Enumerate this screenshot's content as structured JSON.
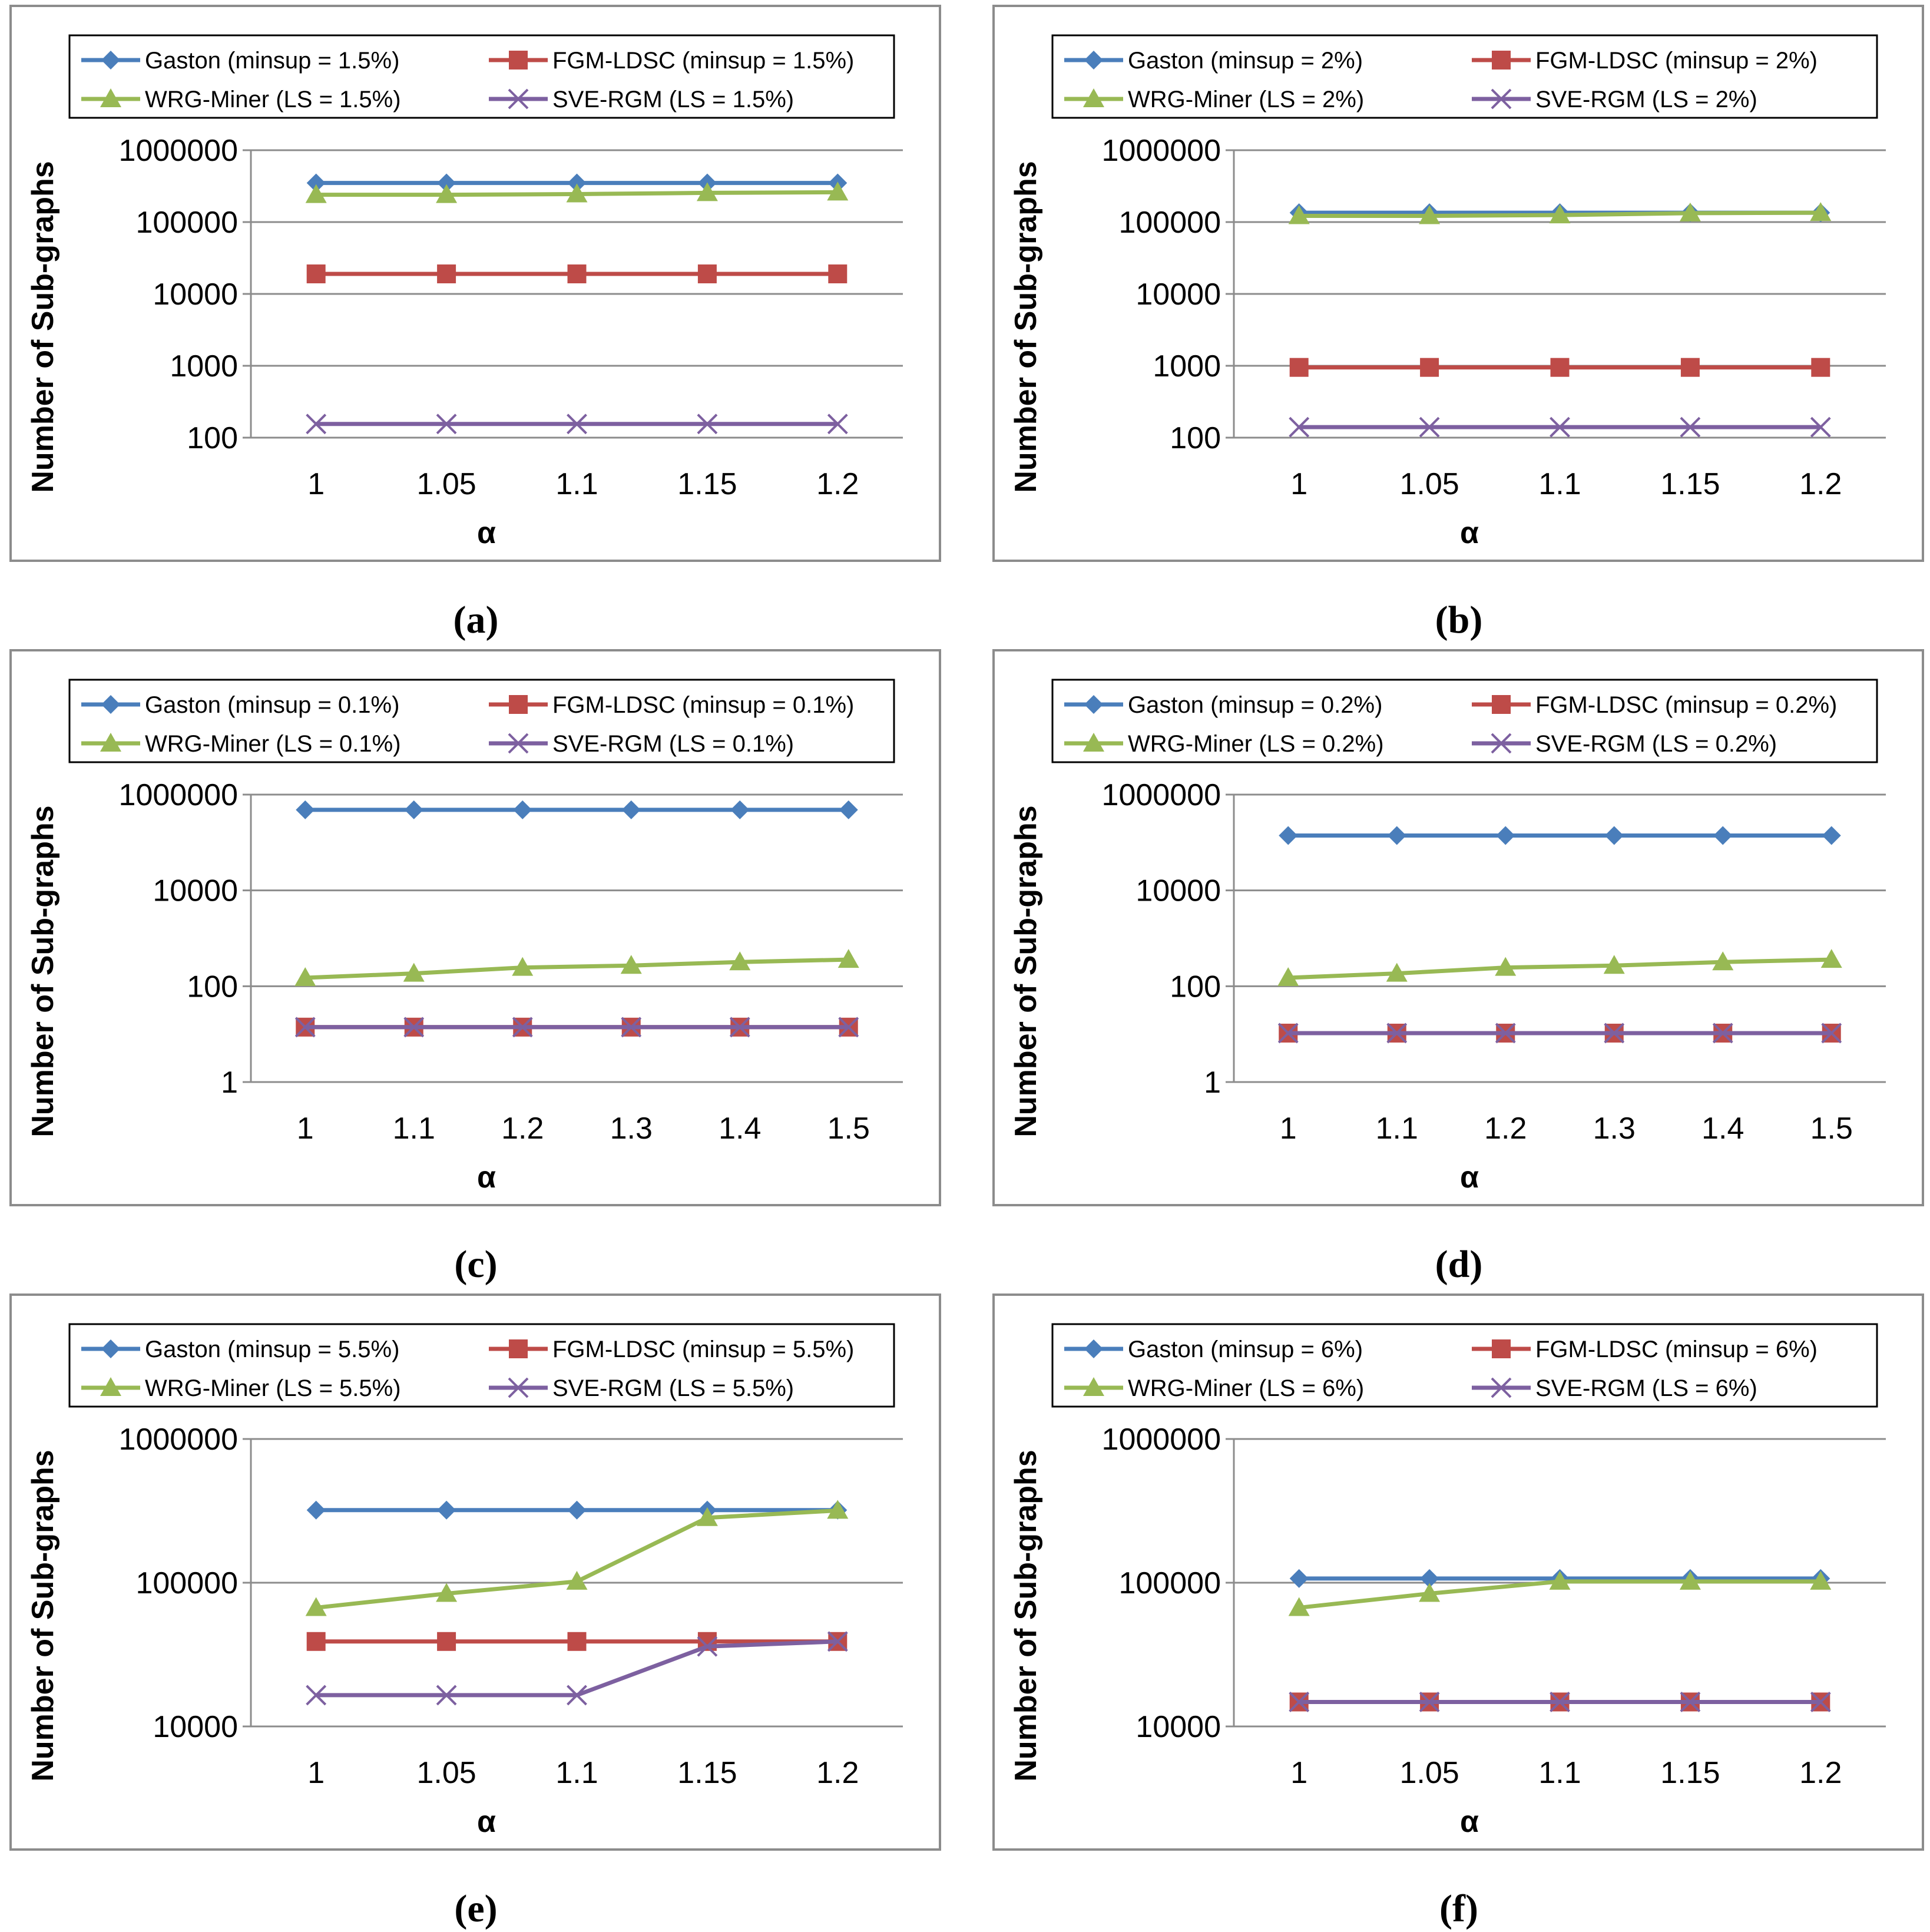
{
  "colors": {
    "Gaston": "#4A7EBB",
    "FGM-LDSC": "#BE4B48",
    "WRG-Miner": "#98B954",
    "SVE-RGM": "#7D60A0"
  },
  "markers": {
    "Gaston": "diamond",
    "FGM-LDSC": "square",
    "WRG-Miner": "triangle",
    "SVE-RGM": "x"
  },
  "chart_data": [
    {
      "type": "line",
      "caption": "(a)",
      "ylabel": "Number of Sub-graphs",
      "xlabel": "α",
      "yscale": "log",
      "ylim": [
        100,
        1000000
      ],
      "yticks": [
        100,
        1000,
        10000,
        100000,
        1000000
      ],
      "ytick_labels": [
        "100",
        "1000",
        "10000",
        "100000",
        "1000000"
      ],
      "categories": [
        "1",
        "1.05",
        "1.1",
        "1.15",
        "1.2"
      ],
      "legend_position": "top",
      "series": [
        {
          "key": "Gaston",
          "name": "Gaston (minsup = 1.5%)",
          "values": [
            350000,
            350000,
            350000,
            350000,
            350000
          ]
        },
        {
          "key": "FGM-LDSC",
          "name": "FGM-LDSC (minsup = 1.5%)",
          "values": [
            19000,
            19000,
            19000,
            19000,
            19000
          ]
        },
        {
          "key": "WRG-Miner",
          "name": "WRG-Miner (LS = 1.5%)",
          "values": [
            240000,
            240000,
            245000,
            255000,
            260000
          ]
        },
        {
          "key": "SVE-RGM",
          "name": "SVE-RGM (LS = 1.5%)",
          "values": [
            155,
            155,
            155,
            155,
            155
          ]
        }
      ]
    },
    {
      "type": "line",
      "caption": "(b)",
      "ylabel": "Number of Sub-graphs",
      "xlabel": "α",
      "yscale": "log",
      "ylim": [
        100,
        1000000
      ],
      "yticks": [
        100,
        1000,
        10000,
        100000,
        1000000
      ],
      "ytick_labels": [
        "100",
        "1000",
        "10000",
        "100000",
        "1000000"
      ],
      "categories": [
        "1",
        "1.05",
        "1.1",
        "1.15",
        "1.2"
      ],
      "legend_position": "top",
      "series": [
        {
          "key": "Gaston",
          "name": "Gaston (minsup = 2%)",
          "values": [
            135000,
            135000,
            135000,
            135000,
            135000
          ]
        },
        {
          "key": "FGM-LDSC",
          "name": "FGM-LDSC (minsup = 2%)",
          "values": [
            950,
            950,
            950,
            950,
            950
          ]
        },
        {
          "key": "WRG-Miner",
          "name": "WRG-Miner (LS = 2%)",
          "values": [
            122000,
            122000,
            125000,
            133000,
            135000
          ]
        },
        {
          "key": "SVE-RGM",
          "name": "SVE-RGM (LS = 2%)",
          "values": [
            140,
            140,
            140,
            140,
            140
          ]
        }
      ]
    },
    {
      "type": "line",
      "caption": "(c)",
      "ylabel": "Number of Sub-graphs",
      "xlabel": "α",
      "yscale": "log",
      "ylim": [
        1,
        1000000
      ],
      "yticks": [
        1,
        100,
        10000,
        1000000
      ],
      "ytick_labels": [
        "1",
        "100",
        "10000",
        "1000000"
      ],
      "categories": [
        "1",
        "1.1",
        "1.2",
        "1.3",
        "1.4",
        "1.5"
      ],
      "legend_position": "top",
      "series": [
        {
          "key": "Gaston",
          "name": "Gaston (minsup = 0.1%)",
          "values": [
            480000,
            480000,
            480000,
            480000,
            480000,
            480000
          ]
        },
        {
          "key": "FGM-LDSC",
          "name": "FGM-LDSC (minsup = 0.1%)",
          "values": [
            14,
            14,
            14,
            14,
            14,
            14
          ]
        },
        {
          "key": "WRG-Miner",
          "name": "WRG-Miner (LS = 0.1%)",
          "values": [
            150,
            185,
            245,
            270,
            320,
            360
          ]
        },
        {
          "key": "SVE-RGM",
          "name": "SVE-RGM (LS = 0.1%)",
          "values": [
            14,
            14,
            14,
            14,
            14,
            14
          ]
        }
      ]
    },
    {
      "type": "line",
      "caption": "(d)",
      "ylabel": "Number of Sub-graphs",
      "xlabel": "α",
      "yscale": "log",
      "ylim": [
        1,
        1000000
      ],
      "yticks": [
        1,
        100,
        10000,
        1000000
      ],
      "ytick_labels": [
        "1",
        "100",
        "10000",
        "1000000"
      ],
      "categories": [
        "1",
        "1.1",
        "1.2",
        "1.3",
        "1.4",
        "1.5"
      ],
      "legend_position": "top",
      "series": [
        {
          "key": "Gaston",
          "name": "Gaston (minsup = 0.2%)",
          "values": [
            140000,
            140000,
            140000,
            140000,
            140000,
            140000
          ]
        },
        {
          "key": "FGM-LDSC",
          "name": "FGM-LDSC (minsup = 0.2%)",
          "values": [
            10.5,
            10.5,
            10.5,
            10.5,
            10.5,
            10.5
          ]
        },
        {
          "key": "WRG-Miner",
          "name": "WRG-Miner (LS = 0.2%)",
          "values": [
            150,
            185,
            245,
            270,
            320,
            360
          ]
        },
        {
          "key": "SVE-RGM",
          "name": "SVE-RGM (LS = 0.2%)",
          "values": [
            10.5,
            10.5,
            10.5,
            10.5,
            10.5,
            10.5
          ]
        }
      ]
    },
    {
      "type": "line",
      "caption": "(e)",
      "ylabel": "Number of Sub-graphs",
      "xlabel": "α",
      "yscale": "log",
      "ylim": [
        10000,
        1000000
      ],
      "yticks": [
        10000,
        100000,
        1000000
      ],
      "ytick_labels": [
        "10000",
        "100000",
        "1000000"
      ],
      "categories": [
        "1",
        "1.05",
        "1.1",
        "1.15",
        "1.2"
      ],
      "legend_position": "top",
      "series": [
        {
          "key": "Gaston",
          "name": "Gaston (minsup = 5.5%)",
          "values": [
            320000,
            320000,
            320000,
            320000,
            320000
          ]
        },
        {
          "key": "FGM-LDSC",
          "name": "FGM-LDSC (minsup = 5.5%)",
          "values": [
            39000,
            39000,
            39000,
            39000,
            39000
          ]
        },
        {
          "key": "WRG-Miner",
          "name": "WRG-Miner (LS = 5.5%)",
          "values": [
            67000,
            84000,
            102000,
            283000,
            318000
          ]
        },
        {
          "key": "SVE-RGM",
          "name": "SVE-RGM (LS = 5.5%)",
          "values": [
            16500,
            16500,
            16500,
            36000,
            39000
          ]
        }
      ]
    },
    {
      "type": "line",
      "caption": "(f)",
      "ylabel": "Number of Sub-graphs",
      "xlabel": "α",
      "yscale": "log",
      "ylim": [
        10000,
        1000000
      ],
      "yticks": [
        10000,
        100000,
        1000000
      ],
      "ytick_labels": [
        "10000",
        "100000",
        "1000000"
      ],
      "categories": [
        "1",
        "1.05",
        "1.1",
        "1.15",
        "1.2"
      ],
      "legend_position": "top",
      "series": [
        {
          "key": "Gaston",
          "name": "Gaston (minsup = 6%)",
          "values": [
            107000,
            107000,
            107000,
            107000,
            107000
          ]
        },
        {
          "key": "FGM-LDSC",
          "name": "FGM-LDSC (minsup = 6%)",
          "values": [
            14800,
            14800,
            14800,
            14800,
            14800
          ]
        },
        {
          "key": "WRG-Miner",
          "name": "WRG-Miner (LS = 6%)",
          "values": [
            67000,
            84000,
            102000,
            102000,
            102000
          ]
        },
        {
          "key": "SVE-RGM",
          "name": "SVE-RGM (LS = 6%)",
          "values": [
            14800,
            14800,
            14800,
            14800,
            14800
          ]
        }
      ]
    }
  ]
}
